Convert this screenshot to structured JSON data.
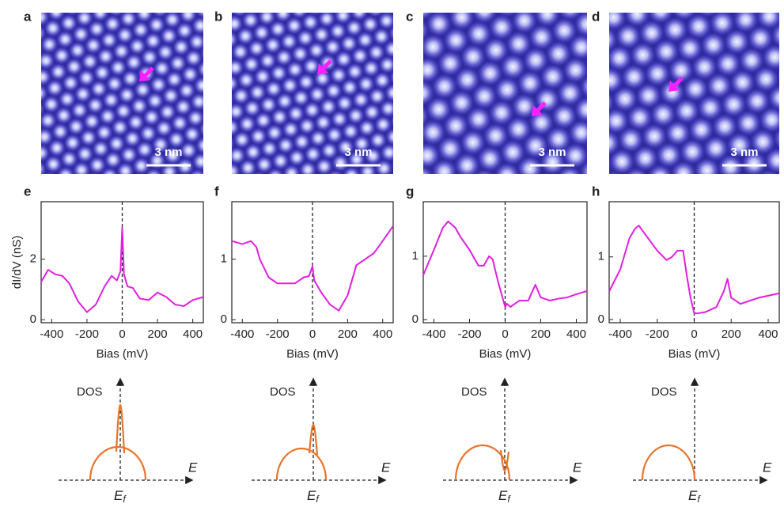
{
  "images": [
    {
      "label": "a",
      "scale_bar": "3 nm"
    },
    {
      "label": "b",
      "scale_bar": "3 nm"
    },
    {
      "label": "c",
      "scale_bar": "3 nm"
    },
    {
      "label": "d",
      "scale_bar": "3 nm"
    }
  ],
  "schematics": [
    {
      "dos": "DOS",
      "energy": "E",
      "fermi": "E",
      "fermi_sub": "f"
    },
    {
      "dos": "DOS",
      "energy": "E",
      "fermi": "E",
      "fermi_sub": "f"
    },
    {
      "dos": "DOS",
      "energy": "E",
      "fermi": "E",
      "fermi_sub": "f"
    },
    {
      "dos": "DOS",
      "energy": "E",
      "fermi": "E",
      "fermi_sub": "f"
    }
  ],
  "chart_data": [
    {
      "type": "line",
      "label": "e",
      "xlabel": "Bias (mV)",
      "ylabel": "dI/dV (nS)",
      "vline": 0,
      "xlim": [
        -460,
        460
      ],
      "xticks": [
        -400,
        -200,
        0,
        200,
        400
      ],
      "ylim": [
        -0.1,
        3.9
      ],
      "yticks": [
        0,
        2
      ],
      "x": [
        -460,
        -420,
        -380,
        -340,
        -300,
        -250,
        -200,
        -150,
        -100,
        -60,
        -30,
        -10,
        0,
        10,
        30,
        60,
        100,
        150,
        200,
        250,
        300,
        350,
        400,
        460
      ],
      "series": [
        {
          "color": "#e01fe0",
          "values": [
            1.25,
            1.65,
            1.5,
            1.45,
            1.2,
            0.6,
            0.25,
            0.5,
            1.1,
            1.45,
            1.3,
            1.6,
            3.05,
            1.5,
            1.1,
            1.05,
            0.7,
            0.65,
            0.9,
            0.75,
            0.5,
            0.45,
            0.65,
            0.75
          ]
        }
      ]
    },
    {
      "type": "line",
      "label": "f",
      "xlabel": "Bias (mV)",
      "vline": 0,
      "xlim": [
        -460,
        460
      ],
      "xticks": [
        -400,
        -200,
        0,
        200,
        400
      ],
      "ylim": [
        -0.05,
        1.95
      ],
      "yticks": [
        0,
        1
      ],
      "x": [
        -460,
        -400,
        -350,
        -320,
        -300,
        -250,
        -200,
        -150,
        -100,
        -50,
        -20,
        0,
        10,
        50,
        100,
        150,
        200,
        250,
        300,
        350,
        400,
        460
      ],
      "series": [
        {
          "color": "#e01fe0",
          "values": [
            1.3,
            1.25,
            1.3,
            1.2,
            1.0,
            0.7,
            0.6,
            0.6,
            0.6,
            0.7,
            0.72,
            0.88,
            0.65,
            0.45,
            0.25,
            0.15,
            0.4,
            0.9,
            1.0,
            1.1,
            1.3,
            1.55
          ]
        }
      ]
    },
    {
      "type": "line",
      "label": "g",
      "xlabel": "Bias (mV)",
      "vline": 0,
      "xlim": [
        -460,
        460
      ],
      "xticks": [
        -400,
        -200,
        0,
        200,
        400
      ],
      "ylim": [
        -0.05,
        1.86
      ],
      "yticks": [
        0,
        1
      ],
      "x": [
        -460,
        -400,
        -350,
        -320,
        -280,
        -250,
        -200,
        -150,
        -120,
        -90,
        -70,
        -40,
        -20,
        0,
        10,
        30,
        80,
        130,
        170,
        200,
        250,
        300,
        350,
        400,
        460
      ],
      "series": [
        {
          "color": "#e01fe0",
          "values": [
            0.7,
            1.1,
            1.45,
            1.55,
            1.45,
            1.3,
            1.1,
            0.85,
            0.85,
            1.0,
            0.95,
            0.6,
            0.4,
            0.2,
            0.25,
            0.2,
            0.3,
            0.3,
            0.55,
            0.35,
            0.3,
            0.33,
            0.35,
            0.4,
            0.45
          ]
        }
      ]
    },
    {
      "type": "line",
      "label": "h",
      "xlabel": "Bias (mV)",
      "vline": 0,
      "xlim": [
        -460,
        460
      ],
      "xticks": [
        -400,
        -200,
        0,
        200,
        400
      ],
      "ylim": [
        -0.05,
        1.88
      ],
      "yticks": [
        0,
        1
      ],
      "x": [
        -460,
        -400,
        -350,
        -320,
        -300,
        -250,
        -200,
        -150,
        -120,
        -90,
        -60,
        -40,
        -20,
        0,
        20,
        60,
        120,
        160,
        180,
        200,
        250,
        300,
        350,
        400,
        460
      ],
      "series": [
        {
          "color": "#e01fe0",
          "values": [
            0.45,
            0.8,
            1.3,
            1.45,
            1.5,
            1.3,
            1.1,
            0.95,
            1.0,
            1.1,
            1.1,
            0.7,
            0.35,
            0.1,
            0.1,
            0.12,
            0.2,
            0.45,
            0.65,
            0.35,
            0.25,
            0.3,
            0.35,
            0.38,
            0.42
          ]
        }
      ]
    }
  ]
}
